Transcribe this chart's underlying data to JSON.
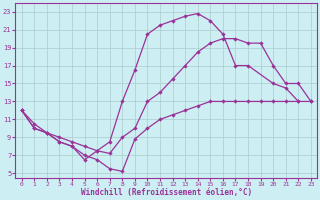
{
  "xlabel": "Windchill (Refroidissement éolien,°C)",
  "bg_color": "#cdeef2",
  "grid_color": "#aacccc",
  "line_color": "#993399",
  "xlim": [
    -0.5,
    23.5
  ],
  "ylim": [
    4.5,
    24
  ],
  "xticks": [
    0,
    1,
    2,
    3,
    4,
    5,
    6,
    7,
    8,
    9,
    10,
    11,
    12,
    13,
    14,
    15,
    16,
    17,
    18,
    19,
    20,
    21,
    22,
    23
  ],
  "yticks": [
    5,
    7,
    9,
    11,
    13,
    15,
    17,
    19,
    21,
    23
  ],
  "line1_x": [
    0,
    1,
    2,
    3,
    4,
    5,
    6,
    7,
    8,
    9,
    10,
    11,
    12,
    13,
    14,
    15,
    16,
    17,
    18,
    20,
    21,
    22,
    23
  ],
  "line1_y": [
    12,
    10,
    9.5,
    8.5,
    8,
    6.5,
    7.5,
    8.5,
    13,
    16.5,
    20.5,
    21.5,
    22,
    22.5,
    22.8,
    22,
    20.5,
    17,
    17,
    15,
    14.5,
    13,
    null
  ],
  "line2_x": [
    0,
    1,
    2,
    3,
    4,
    5,
    6,
    7,
    8,
    9,
    10,
    11,
    12,
    13,
    14,
    15,
    16,
    17,
    18,
    19,
    20,
    21,
    22,
    23
  ],
  "line2_y": [
    12,
    10,
    9.5,
    9,
    8.5,
    8,
    7.5,
    7.2,
    9,
    10,
    13,
    14,
    15.5,
    17,
    18.5,
    19.5,
    20,
    20,
    19.5,
    19.5,
    17,
    15,
    15,
    13
  ],
  "line3_x": [
    0,
    1,
    2,
    3,
    4,
    5,
    6,
    7,
    8,
    9,
    10,
    11,
    12,
    13,
    14,
    15,
    16,
    17,
    18,
    19,
    20,
    21,
    22,
    23
  ],
  "line3_y": [
    12,
    10.5,
    9.5,
    8.5,
    8,
    7,
    6.5,
    5.5,
    5.2,
    8.8,
    10,
    11,
    11.5,
    12,
    12.5,
    13,
    13,
    13,
    13,
    13,
    13,
    13,
    13,
    13
  ]
}
